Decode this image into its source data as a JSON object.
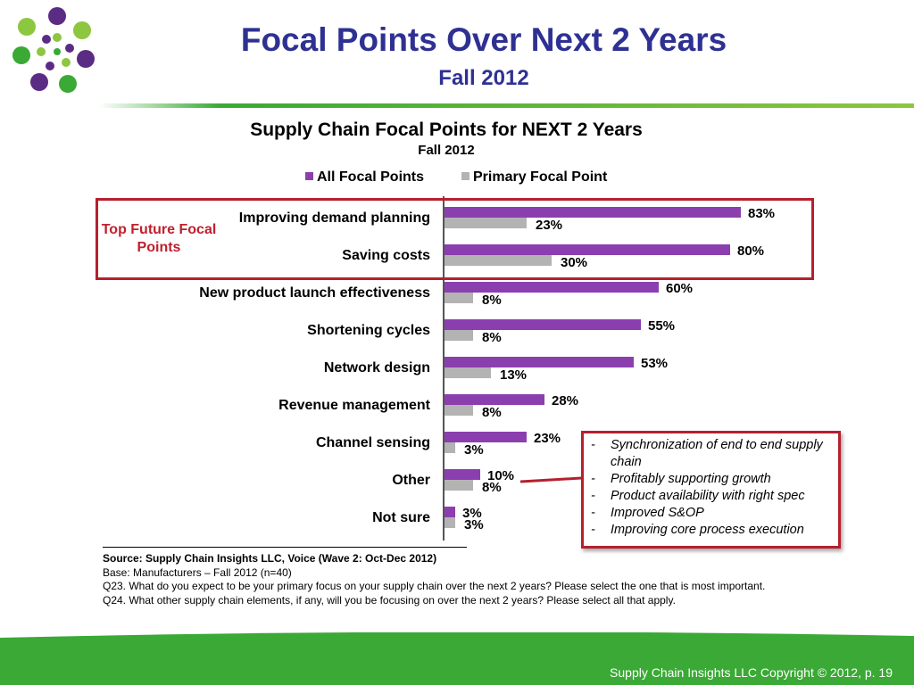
{
  "slide": {
    "title": "Focal Points Over Next 2 Years",
    "subtitle": "Fall 2012",
    "footer": "Supply Chain Insights LLC Copyright © 2012, p. 19"
  },
  "colors": {
    "title": "#2e3192",
    "accent_green": "#3aa935",
    "all_focal_points": "#8b3fae",
    "primary_focal_point": "#b3b3b3",
    "highlight_red": "#b5202e"
  },
  "chart_data": {
    "type": "bar",
    "orientation": "horizontal",
    "title": "Supply Chain Focal Points for NEXT 2 Years",
    "subtitle": "Fall 2012",
    "legend_position": "top",
    "grid": false,
    "xlim": [
      0,
      100
    ],
    "value_suffix": "%",
    "categories": [
      "Improving demand planning",
      "Saving costs",
      "New product launch effectiveness",
      "Shortening cycles",
      "Network design",
      "Revenue management",
      "Channel sensing",
      "Other",
      "Not sure"
    ],
    "series": [
      {
        "name": "All Focal Points",
        "values": [
          83,
          80,
          60,
          55,
          53,
          28,
          23,
          10,
          3
        ]
      },
      {
        "name": "Primary Focal Point",
        "values": [
          23,
          30,
          8,
          8,
          13,
          8,
          3,
          8,
          3
        ]
      }
    ]
  },
  "callouts": {
    "top_future_label": "Top Future Focal Points",
    "other_details": [
      "Synchronization of end to end supply chain",
      "Profitably supporting growth",
      "Product availability with right spec",
      "Improved S&OP",
      "Improving core process execution"
    ]
  },
  "source": {
    "line1": "Source:  Supply Chain Insights LLC, Voice (Wave 2: Oct-Dec 2012)",
    "line2": "Base:  Manufacturers – Fall 2012 (n=40)",
    "line3": "Q23. What do you expect to be your primary focus on your supply chain over the next 2 years? Please select the one that is most important.",
    "line4": "Q24. What other supply chain elements, if any, will you be focusing on over the next 2 years? Please select all that apply."
  }
}
